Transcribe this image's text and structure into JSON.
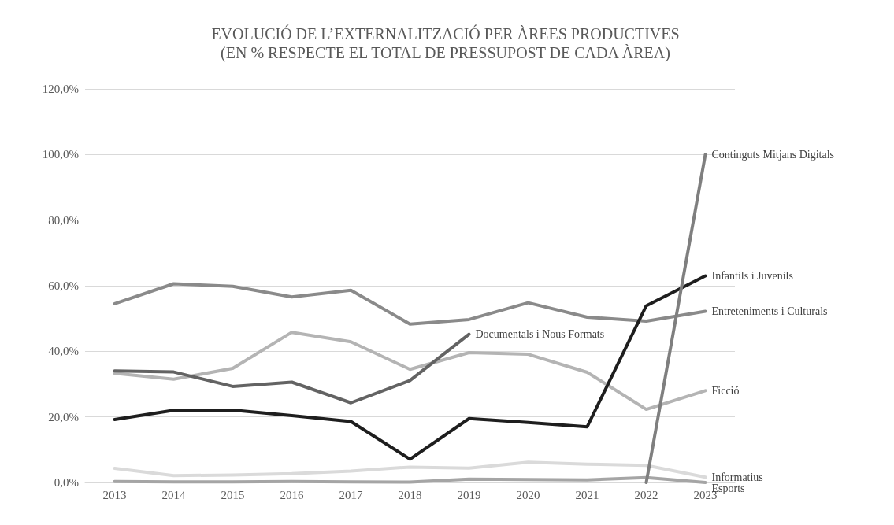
{
  "chart_data": {
    "type": "line",
    "title": "EVOLUCIÓ DE L’EXTERNALITZACIÓ PER ÀREES PRODUCTIVES\n(EN % RESPECTE EL TOTAL DE PRESSUPOST DE CADA ÀREA)",
    "categories": [
      "2013",
      "2014",
      "2015",
      "2016",
      "2017",
      "2018",
      "2019",
      "2020",
      "2021",
      "2022",
      "2023"
    ],
    "series": [
      {
        "name": "Entreteniments i Culturals",
        "color": "#8a8a8a",
        "values": [
          54.5,
          60.6,
          59.8,
          56.6,
          58.6,
          48.3,
          49.7,
          54.8,
          50.4,
          49.2,
          52.2
        ]
      },
      {
        "name": "Ficció",
        "color": "#b4b4b4",
        "values": [
          33.3,
          31.5,
          34.8,
          45.8,
          42.9,
          34.5,
          39.6,
          39.1,
          33.6,
          22.3,
          28.0
        ]
      },
      {
        "name": "Documentals i Nous Formats",
        "color": "#636363",
        "values": [
          34.0,
          33.7,
          29.3,
          30.6,
          24.3,
          31.1,
          45.2,
          null,
          null,
          null,
          null
        ]
      },
      {
        "name": "Infantils i Juvenils",
        "color": "#1e1e1e",
        "values": [
          19.2,
          22.0,
          22.1,
          20.4,
          18.6,
          7.1,
          19.5,
          18.3,
          17.0,
          53.9,
          63.0
        ]
      },
      {
        "name": "Informatius",
        "color": "#dadada",
        "values": [
          4.3,
          2.1,
          2.3,
          2.7,
          3.5,
          4.7,
          4.4,
          6.2,
          5.6,
          5.2,
          1.6
        ]
      },
      {
        "name": "Esports",
        "color": "#a5a5a5",
        "values": [
          0.3,
          0.2,
          0.2,
          0.3,
          0.2,
          0.1,
          1.0,
          0.9,
          0.8,
          1.5,
          0.0
        ]
      },
      {
        "name": "Continguts Mitjans Digitals",
        "color": "#7f7f7f",
        "values": [
          null,
          null,
          null,
          null,
          null,
          null,
          null,
          null,
          null,
          0,
          100
        ]
      }
    ],
    "ylim": [
      0,
      120
    ],
    "yticks": [
      {
        "value": 0,
        "label": "0,0%"
      },
      {
        "value": 20,
        "label": "20,0%"
      },
      {
        "value": 40,
        "label": "40,0%"
      },
      {
        "value": 60,
        "label": "60,0%"
      },
      {
        "value": 80,
        "label": "80,0%"
      },
      {
        "value": 100,
        "label": "100,0%"
      },
      {
        "value": 120,
        "label": "120,0%"
      }
    ],
    "grid": "y",
    "legend": false,
    "marker": "none",
    "line_style": "solid"
  }
}
